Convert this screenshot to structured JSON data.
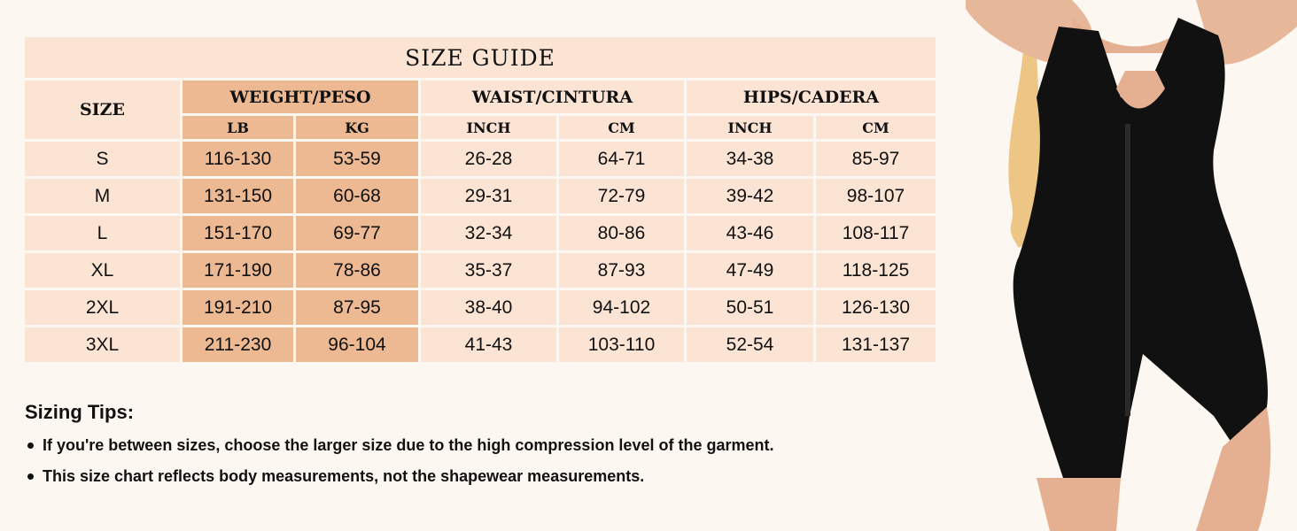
{
  "title": "SIZE GUIDE",
  "headers": {
    "size": "SIZE",
    "weight": "WEIGHT/PESO",
    "waist": "WAIST/CINTURA",
    "hips": "HIPS/CADERA",
    "lb": "LB",
    "kg": "KG",
    "waist_inch": "INCH",
    "waist_cm": "CM",
    "hips_inch": "INCH",
    "hips_cm": "CM"
  },
  "rows": [
    [
      "S",
      "116-130",
      "53-59",
      "26-28",
      "64-71",
      "34-38",
      "85-97"
    ],
    [
      "M",
      "131-150",
      "60-68",
      "29-31",
      "72-79",
      "39-42",
      "98-107"
    ],
    [
      "L",
      "151-170",
      "69-77",
      "32-34",
      "80-86",
      "43-46",
      "108-117"
    ],
    [
      "XL",
      "171-190",
      "78-86",
      "35-37",
      "87-93",
      "47-49",
      "118-125"
    ],
    [
      "2XL",
      "191-210",
      "87-95",
      "38-40",
      "94-102",
      "50-51",
      "126-130"
    ],
    [
      "3XL",
      "211-230",
      "96-104",
      "41-43",
      "103-110",
      "52-54",
      "131-137"
    ]
  ],
  "tips": {
    "heading": "Sizing Tips:",
    "items": [
      "If you're between sizes, choose the larger size due to the high compression level of the garment.",
      "This size chart reflects body measurements, not the shapewear measurements."
    ]
  },
  "colors": {
    "background": "#fdf7f1",
    "cell": "#fbe4d4",
    "weight_cell": "#ecb993"
  }
}
